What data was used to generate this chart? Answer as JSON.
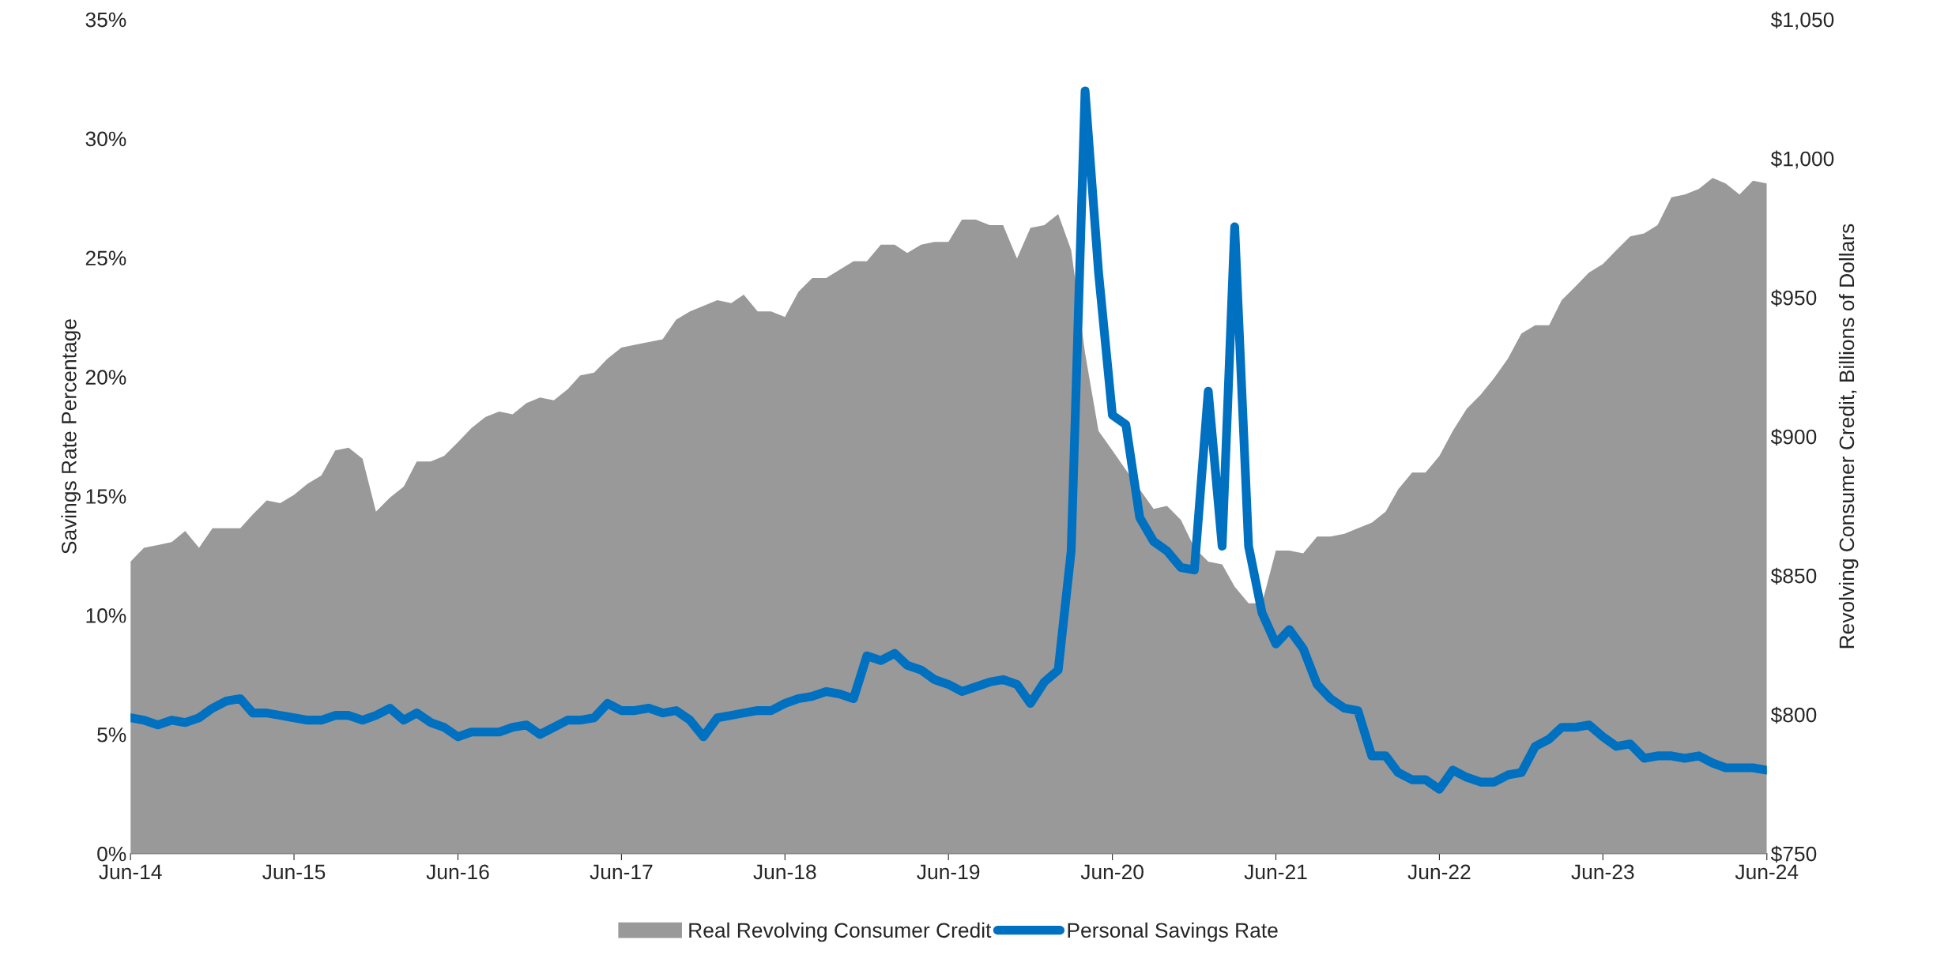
{
  "chart_data": {
    "type": "line",
    "ylabel": "Savings Rate Percentage",
    "y2label": "Revolving Consumer Credit, Billions of Dollars",
    "x": [
      "2014-06",
      "2014-07",
      "2014-08",
      "2014-09",
      "2014-10",
      "2014-11",
      "2014-12",
      "2015-01",
      "2015-02",
      "2015-03",
      "2015-04",
      "2015-05",
      "2015-06",
      "2015-07",
      "2015-08",
      "2015-09",
      "2015-10",
      "2015-11",
      "2015-12",
      "2016-01",
      "2016-02",
      "2016-03",
      "2016-04",
      "2016-05",
      "2016-06",
      "2016-07",
      "2016-08",
      "2016-09",
      "2016-10",
      "2016-11",
      "2016-12",
      "2017-01",
      "2017-02",
      "2017-03",
      "2017-04",
      "2017-05",
      "2017-06",
      "2017-07",
      "2017-08",
      "2017-09",
      "2017-10",
      "2017-11",
      "2017-12",
      "2018-01",
      "2018-02",
      "2018-03",
      "2018-04",
      "2018-05",
      "2018-06",
      "2018-07",
      "2018-08",
      "2018-09",
      "2018-10",
      "2018-11",
      "2018-12",
      "2019-01",
      "2019-02",
      "2019-03",
      "2019-04",
      "2019-05",
      "2019-06",
      "2019-07",
      "2019-08",
      "2019-09",
      "2019-10",
      "2019-11",
      "2019-12",
      "2020-01",
      "2020-02",
      "2020-03",
      "2020-04",
      "2020-05",
      "2020-06",
      "2020-07",
      "2020-08",
      "2020-09",
      "2020-10",
      "2020-11",
      "2020-12",
      "2021-01",
      "2021-02",
      "2021-03",
      "2021-04",
      "2021-05",
      "2021-06",
      "2021-07",
      "2021-08",
      "2021-09",
      "2021-10",
      "2021-11",
      "2021-12",
      "2022-01",
      "2022-02",
      "2022-03",
      "2022-04",
      "2022-05",
      "2022-06",
      "2022-07",
      "2022-08",
      "2022-09",
      "2022-10",
      "2022-11",
      "2022-12",
      "2023-01",
      "2023-02",
      "2023-03",
      "2023-04",
      "2023-05",
      "2023-06",
      "2023-07",
      "2023-08",
      "2023-09",
      "2023-10",
      "2023-11",
      "2023-12",
      "2024-01",
      "2024-02",
      "2024-03",
      "2024-04",
      "2024-05",
      "2024-06"
    ],
    "series": [
      {
        "name": "Real Revolving Consumer Credit",
        "type": "area",
        "axis": "y2",
        "color": "#999999",
        "values": [
          855,
          860,
          861,
          862,
          866,
          860,
          867,
          867,
          867,
          872,
          877,
          876,
          879,
          883,
          886,
          895,
          896,
          892,
          873,
          878,
          882,
          891,
          891,
          893,
          898,
          903,
          907,
          909,
          908,
          912,
          914,
          913,
          917,
          922,
          923,
          928,
          932,
          933,
          934,
          935,
          942,
          945,
          947,
          949,
          948,
          951,
          945,
          945,
          943,
          952,
          957,
          957,
          960,
          963,
          963,
          969,
          969,
          966,
          969,
          970,
          970,
          978,
          978,
          976,
          976,
          964,
          975,
          976,
          980,
          967,
          930,
          902,
          895,
          888,
          881,
          874,
          875,
          870,
          860,
          855,
          854,
          846,
          840,
          840,
          859,
          859,
          858,
          864,
          864,
          865,
          867,
          869,
          873,
          881,
          887,
          887,
          893,
          902,
          910,
          915,
          921,
          928,
          937,
          940,
          940,
          949,
          954,
          959,
          962,
          967,
          972,
          973,
          976,
          986,
          987,
          989,
          993,
          991,
          987,
          992,
          991
        ]
      },
      {
        "name": "Personal Savings Rate",
        "axis": "y",
        "color": "#0070c0",
        "values": [
          5.7,
          5.6,
          5.4,
          5.6,
          5.5,
          5.7,
          6.1,
          6.4,
          6.5,
          5.9,
          5.9,
          5.8,
          5.7,
          5.6,
          5.6,
          5.8,
          5.8,
          5.6,
          5.8,
          6.1,
          5.6,
          5.9,
          5.5,
          5.3,
          4.9,
          5.1,
          5.1,
          5.1,
          5.3,
          5.4,
          5.0,
          5.3,
          5.6,
          5.6,
          5.7,
          6.3,
          6.0,
          6.0,
          6.1,
          5.9,
          6.0,
          5.6,
          4.9,
          5.7,
          5.8,
          5.9,
          6.0,
          6.0,
          6.3,
          6.5,
          6.6,
          6.8,
          6.7,
          6.5,
          8.3,
          8.1,
          8.4,
          7.9,
          7.7,
          7.3,
          7.1,
          6.8,
          7.0,
          7.2,
          7.3,
          7.1,
          6.3,
          7.2,
          7.7,
          12.7,
          32.0,
          24.4,
          18.4,
          18.0,
          14.1,
          13.1,
          12.7,
          12.0,
          11.9,
          19.4,
          12.9,
          26.3,
          12.9,
          10.1,
          8.8,
          9.4,
          8.6,
          7.1,
          6.5,
          6.1,
          6.0,
          4.1,
          4.1,
          3.4,
          3.1,
          3.1,
          2.7,
          3.5,
          3.2,
          3.0,
          3.0,
          3.3,
          3.4,
          4.5,
          4.8,
          5.3,
          5.3,
          5.4,
          4.9,
          4.5,
          4.6,
          4.0,
          4.1,
          4.1,
          4.0,
          4.1,
          3.8,
          3.6,
          3.6,
          3.6,
          3.5
        ]
      }
    ],
    "xlim": [
      "2014-06",
      "2024-06"
    ],
    "xticks": [
      {
        "value": "2014-06",
        "label": "Jun-14"
      },
      {
        "value": "2015-06",
        "label": "Jun-15"
      },
      {
        "value": "2016-06",
        "label": "Jun-16"
      },
      {
        "value": "2017-06",
        "label": "Jun-17"
      },
      {
        "value": "2018-06",
        "label": "Jun-18"
      },
      {
        "value": "2019-06",
        "label": "Jun-19"
      },
      {
        "value": "2020-06",
        "label": "Jun-20"
      },
      {
        "value": "2021-06",
        "label": "Jun-21"
      },
      {
        "value": "2022-06",
        "label": "Jun-22"
      },
      {
        "value": "2023-06",
        "label": "Jun-23"
      },
      {
        "value": "2024-06",
        "label": "Jun-24"
      }
    ],
    "ylim": [
      0,
      35
    ],
    "yticks": [
      {
        "value": 0,
        "label": "0%"
      },
      {
        "value": 5,
        "label": "5%"
      },
      {
        "value": 10,
        "label": "10%"
      },
      {
        "value": 15,
        "label": "15%"
      },
      {
        "value": 20,
        "label": "20%"
      },
      {
        "value": 25,
        "label": "25%"
      },
      {
        "value": 30,
        "label": "30%"
      },
      {
        "value": 35,
        "label": "35%"
      }
    ],
    "y2lim": [
      750,
      1050
    ],
    "y2ticks": [
      {
        "value": 750,
        "label": "$750"
      },
      {
        "value": 800,
        "label": "$800"
      },
      {
        "value": 850,
        "label": "$850"
      },
      {
        "value": 900,
        "label": "$900"
      },
      {
        "value": 950,
        "label": "$950"
      },
      {
        "value": 1000,
        "label": "$1,000"
      },
      {
        "value": 1050,
        "label": "$1,050"
      }
    ],
    "grid": false,
    "legend": "bottom",
    "line_style": "solid",
    "marker": "none"
  }
}
